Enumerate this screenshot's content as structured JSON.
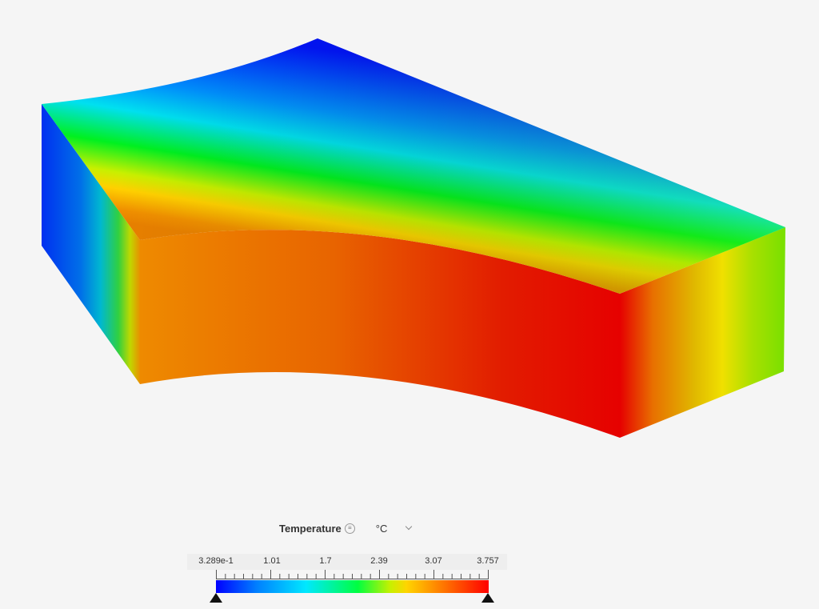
{
  "legend": {
    "title": "Temperature",
    "info_icon": "menu-lines-icon",
    "unit": "°C",
    "ticks": [
      "3.289e-1",
      "1.01",
      "1.7",
      "2.39",
      "3.07",
      "3.757"
    ],
    "min_handle_icon": "triangle-up-icon",
    "max_handle_icon": "triangle-up-icon"
  },
  "colormap": {
    "blue": "#0000ff",
    "cyan": "#00e8ff",
    "green": "#00ff40",
    "yellow": "#ffd400",
    "orange": "#ff8000",
    "red": "#ff0000"
  }
}
